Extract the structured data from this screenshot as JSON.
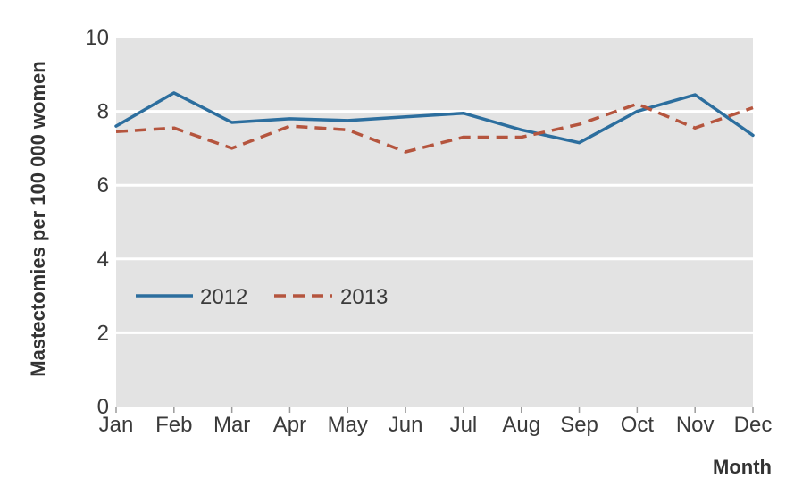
{
  "chart_data": {
    "type": "line",
    "title": "",
    "xlabel": "Month",
    "ylabel": "Mastectomies per 100 000 women",
    "categories": [
      "Jan",
      "Feb",
      "Mar",
      "Apr",
      "May",
      "Jun",
      "Jul",
      "Aug",
      "Sep",
      "Oct",
      "Nov",
      "Dec"
    ],
    "ylim": [
      0,
      10
    ],
    "yticks": [
      "0",
      "2",
      "4",
      "6",
      "8",
      "10"
    ],
    "grid": true,
    "legend_position": "left-middle",
    "series": [
      {
        "name": "2012",
        "color": "#2c6e9e",
        "style": "solid",
        "values": [
          7.6,
          8.5,
          7.7,
          7.8,
          7.75,
          7.85,
          7.95,
          7.5,
          7.15,
          8.0,
          8.45,
          7.35
        ]
      },
      {
        "name": "2013",
        "color": "#b5553e",
        "style": "dashed",
        "values": [
          7.45,
          7.55,
          7.0,
          7.6,
          7.5,
          6.9,
          7.3,
          7.3,
          7.65,
          8.2,
          7.55,
          8.1
        ]
      }
    ],
    "plot_background": "#e3e3e3",
    "gridline_color": "#ffffff"
  }
}
